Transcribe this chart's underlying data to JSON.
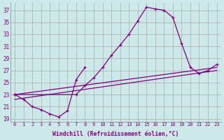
{
  "xlabel": "Windchill (Refroidissement éolien,°C)",
  "background_color": "#cce8e8",
  "grid_color": "#aaaaaa",
  "line_color": "#800080",
  "xlim": [
    -0.5,
    23.5
  ],
  "ylim": [
    18.5,
    38.2
  ],
  "yticks": [
    19,
    21,
    23,
    25,
    27,
    29,
    31,
    33,
    35,
    37
  ],
  "xticks": [
    0,
    1,
    2,
    3,
    4,
    5,
    6,
    7,
    8,
    9,
    10,
    11,
    12,
    13,
    14,
    15,
    16,
    17,
    18,
    19,
    20,
    21,
    22,
    23
  ],
  "curves": [
    {
      "x": [
        0,
        7,
        8,
        9,
        10,
        11,
        12,
        13,
        14,
        15,
        16,
        17,
        18,
        19,
        20,
        21,
        22,
        23
      ],
      "y": [
        23.0,
        23.0,
        24.5,
        25.8,
        27.5,
        29.5,
        31.2,
        33.0,
        35.2,
        37.5,
        37.2,
        37.0,
        35.8,
        31.5,
        27.5,
        26.5,
        27.0,
        28.0
      ],
      "marker": true
    },
    {
      "x": [
        0,
        1,
        2,
        3,
        4,
        5,
        6,
        7,
        8
      ],
      "y": [
        23.0,
        22.2,
        21.0,
        20.5,
        19.8,
        19.3,
        20.3,
        25.5,
        27.5
      ],
      "marker": true
    },
    {
      "x": [
        0,
        23
      ],
      "y": [
        23.0,
        27.5
      ],
      "marker": false
    },
    {
      "x": [
        0,
        23
      ],
      "y": [
        22.2,
        27.0
      ],
      "marker": false
    }
  ]
}
